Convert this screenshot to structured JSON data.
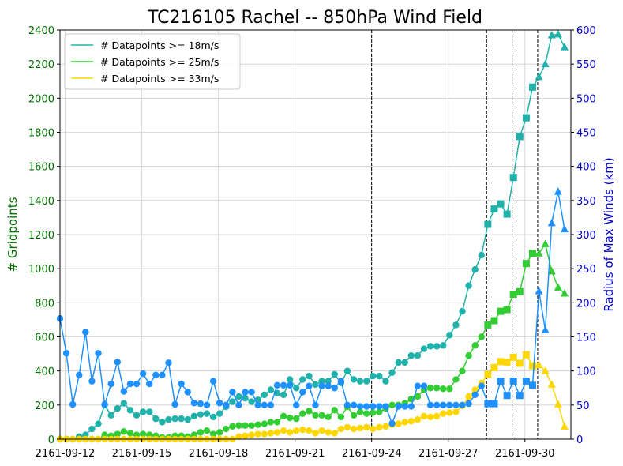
{
  "chart_data": {
    "type": "line",
    "title": "TC216105 Rachel -- 850hPa Wind Field",
    "xlabel": "",
    "ylabel_left": "# Gridpoints",
    "ylabel_right": "Radius of Max Winds (km)",
    "x_ticks": [
      "2161-09-12",
      "2161-09-15",
      "2161-09-18",
      "2161-09-21",
      "2161-09-24",
      "2161-09-27",
      "2161-09-30"
    ],
    "x_tick_day": [
      12,
      15,
      18,
      21,
      24,
      27,
      30
    ],
    "x_start_day": 11.8,
    "x_end_day": 31.8,
    "x_unit": "day of 2161-09",
    "ylim_left": [
      0,
      2400
    ],
    "yticks_left": [
      0,
      200,
      400,
      600,
      800,
      1000,
      1200,
      1400,
      1600,
      1800,
      2000,
      2200,
      2400
    ],
    "ylim_right": [
      0,
      600
    ],
    "yticks_right": [
      0,
      50,
      100,
      150,
      200,
      250,
      300,
      350,
      400,
      450,
      500,
      550,
      600
    ],
    "grid": true,
    "legend_position": "upper-left",
    "vlines_day": [
      24.0,
      28.5,
      29.5,
      30.5
    ],
    "x": [
      11.8,
      12.05,
      12.3,
      12.55,
      12.8,
      13.05,
      13.3,
      13.55,
      13.8,
      14.05,
      14.3,
      14.55,
      14.8,
      15.05,
      15.3,
      15.55,
      15.8,
      16.05,
      16.3,
      16.55,
      16.8,
      17.05,
      17.3,
      17.55,
      17.8,
      18.05,
      18.3,
      18.55,
      18.8,
      19.05,
      19.3,
      19.55,
      19.8,
      20.05,
      20.3,
      20.55,
      20.8,
      21.05,
      21.3,
      21.55,
      21.8,
      22.05,
      22.3,
      22.55,
      22.8,
      23.05,
      23.3,
      23.55,
      23.8,
      24.05,
      24.3,
      24.55,
      24.8,
      25.05,
      25.3,
      25.55,
      25.8,
      26.05,
      26.3,
      26.55,
      26.8,
      27.05,
      27.3,
      27.55,
      27.8,
      28.05,
      28.3,
      28.55,
      28.8,
      29.05,
      29.3,
      29.55,
      29.8,
      30.05,
      30.3,
      30.55,
      30.8,
      31.05,
      31.3,
      31.55
    ],
    "markers": [
      "circle",
      "circle",
      "circle",
      "circle",
      "circle",
      "circle",
      "circle",
      "circle",
      "circle",
      "circle",
      "circle",
      "circle",
      "circle",
      "circle",
      "circle",
      "circle",
      "circle",
      "circle",
      "circle",
      "circle",
      "circle",
      "circle",
      "circle",
      "circle",
      "circle",
      "circle",
      "circle",
      "circle",
      "circle",
      "circle",
      "circle",
      "circle",
      "circle",
      "circle",
      "circle",
      "circle",
      "circle",
      "circle",
      "circle",
      "circle",
      "circle",
      "circle",
      "circle",
      "circle",
      "circle",
      "circle",
      "circle",
      "circle",
      "circle",
      "circle",
      "circle",
      "circle",
      "circle",
      "circle",
      "circle",
      "circle",
      "circle",
      "circle",
      "circle",
      "circle",
      "circle",
      "circle",
      "circle",
      "circle",
      "circle",
      "circle",
      "circle",
      "square",
      "square",
      "square",
      "square",
      "square",
      "square",
      "square",
      "square",
      "triangle",
      "triangle",
      "triangle",
      "triangle",
      "triangle"
    ],
    "series": [
      {
        "name": "# Datapoints >= 18m/s",
        "axis": "left",
        "color": "#20b2aa",
        "values": [
          0,
          0,
          0,
          15,
          25,
          60,
          90,
          200,
          140,
          180,
          210,
          170,
          140,
          160,
          160,
          120,
          100,
          115,
          120,
          120,
          115,
          135,
          145,
          150,
          130,
          150,
          190,
          220,
          250,
          240,
          220,
          230,
          260,
          290,
          270,
          260,
          350,
          300,
          350,
          370,
          320,
          340,
          340,
          380,
          330,
          400,
          350,
          340,
          340,
          370,
          370,
          340,
          390,
          450,
          450,
          490,
          490,
          530,
          545,
          545,
          550,
          610,
          670,
          750,
          900,
          995,
          1080,
          1260,
          1350,
          1380,
          1320,
          1535,
          1775,
          1885,
          2065,
          2125,
          2200,
          2370,
          2375,
          2300
        ]
      },
      {
        "name": "# Datapoints >= 25m/s",
        "axis": "left",
        "color": "#32cd32",
        "values": [
          0,
          0,
          0,
          0,
          0,
          0,
          0,
          25,
          20,
          30,
          45,
          35,
          25,
          30,
          25,
          20,
          10,
          10,
          20,
          20,
          15,
          25,
          40,
          50,
          30,
          40,
          60,
          75,
          80,
          80,
          80,
          85,
          90,
          100,
          100,
          135,
          125,
          120,
          150,
          165,
          140,
          140,
          130,
          170,
          130,
          190,
          140,
          160,
          150,
          155,
          160,
          180,
          200,
          200,
          210,
          235,
          250,
          290,
          300,
          300,
          295,
          295,
          350,
          400,
          490,
          550,
          600,
          670,
          695,
          750,
          760,
          850,
          865,
          1030,
          1090,
          1090,
          1145,
          985,
          890,
          855
        ]
      },
      {
        "name": "# Datapoints >= 33m/s",
        "axis": "left",
        "color": "#ffd700",
        "values": [
          0,
          0,
          0,
          0,
          0,
          0,
          0,
          0,
          0,
          0,
          0,
          0,
          0,
          0,
          0,
          0,
          0,
          0,
          0,
          0,
          0,
          0,
          0,
          0,
          0,
          0,
          0,
          0,
          15,
          20,
          25,
          30,
          30,
          35,
          40,
          50,
          40,
          50,
          55,
          50,
          35,
          50,
          40,
          35,
          60,
          70,
          60,
          65,
          70,
          60,
          70,
          75,
          85,
          90,
          100,
          105,
          115,
          135,
          130,
          135,
          150,
          155,
          160,
          195,
          250,
          290,
          330,
          380,
          420,
          455,
          450,
          480,
          445,
          495,
          430,
          435,
          400,
          320,
          205,
          75
        ]
      },
      {
        "name": "",
        "axis": "right",
        "color": "#1e90ff",
        "values": [
          177,
          126,
          51,
          94,
          157,
          85,
          126,
          51,
          81,
          113,
          70,
          81,
          81,
          96,
          81,
          94,
          94,
          112,
          51,
          81,
          69,
          53,
          52,
          50,
          85,
          53,
          50,
          69,
          50,
          69,
          69,
          50,
          50,
          50,
          79,
          79,
          79,
          50,
          69,
          78,
          50,
          78,
          78,
          75,
          85,
          50,
          50,
          48,
          48,
          48,
          48,
          48,
          23,
          48,
          48,
          48,
          78,
          78,
          50,
          50,
          50,
          50,
          50,
          50,
          52,
          65,
          78,
          52,
          52,
          85,
          64,
          85,
          64,
          85,
          79,
          217,
          160,
          317,
          363,
          308
        ]
      }
    ]
  }
}
